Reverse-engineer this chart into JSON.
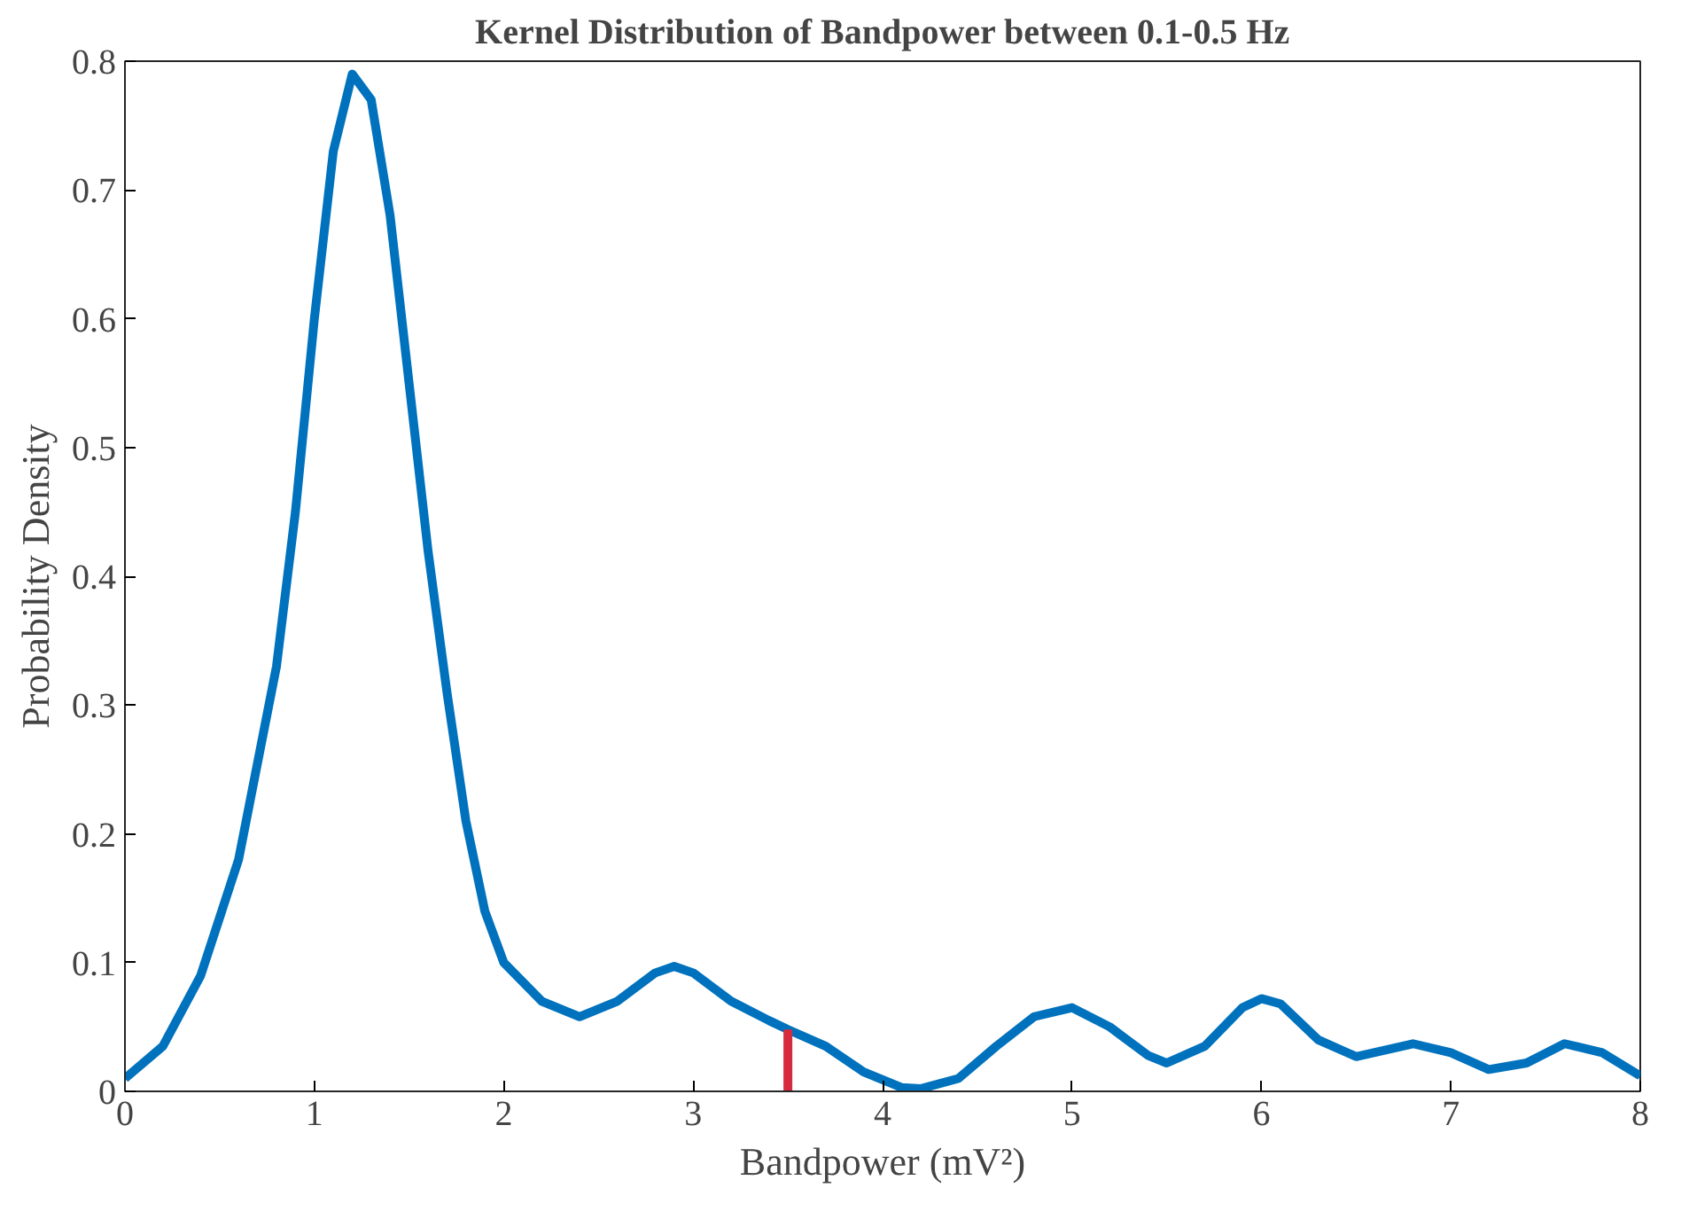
{
  "chart_data": {
    "type": "line",
    "title": "Kernel Distribution of Bandpower between 0.1-0.5 Hz",
    "xlabel": "Bandpower (mV²)",
    "ylabel": "Probability Density",
    "xlim": [
      0,
      8
    ],
    "ylim": [
      0,
      0.8
    ],
    "xticks": [
      0,
      1,
      2,
      3,
      4,
      5,
      6,
      7,
      8
    ],
    "yticks": [
      0,
      0.1,
      0.2,
      0.3,
      0.4,
      0.5,
      0.6,
      0.7,
      0.8
    ],
    "grid": false,
    "series": [
      {
        "color": "#0072bd",
        "x": [
          0,
          0.2,
          0.4,
          0.6,
          0.8,
          0.9,
          1.0,
          1.1,
          1.2,
          1.3,
          1.4,
          1.5,
          1.6,
          1.7,
          1.8,
          1.9,
          2.0,
          2.2,
          2.4,
          2.6,
          2.8,
          2.9,
          3.0,
          3.2,
          3.4,
          3.5,
          3.7,
          3.9,
          4.1,
          4.2,
          4.4,
          4.6,
          4.8,
          5.0,
          5.2,
          5.4,
          5.5,
          5.7,
          5.9,
          6.0,
          6.1,
          6.3,
          6.5,
          6.8,
          7.0,
          7.2,
          7.4,
          7.6,
          7.8,
          8.0
        ],
        "values": [
          0.01,
          0.035,
          0.09,
          0.18,
          0.33,
          0.45,
          0.6,
          0.73,
          0.79,
          0.77,
          0.68,
          0.55,
          0.42,
          0.31,
          0.21,
          0.14,
          0.1,
          0.07,
          0.058,
          0.07,
          0.092,
          0.097,
          0.092,
          0.07,
          0.055,
          0.048,
          0.035,
          0.015,
          0.003,
          0.002,
          0.01,
          0.035,
          0.058,
          0.065,
          0.05,
          0.028,
          0.022,
          0.035,
          0.065,
          0.072,
          0.068,
          0.04,
          0.027,
          0.037,
          0.03,
          0.017,
          0.022,
          0.037,
          0.03,
          0.012
        ]
      },
      {
        "color": "#d62b3f",
        "x": [
          3.5,
          3.5
        ],
        "values": [
          0,
          0.048
        ]
      }
    ]
  }
}
